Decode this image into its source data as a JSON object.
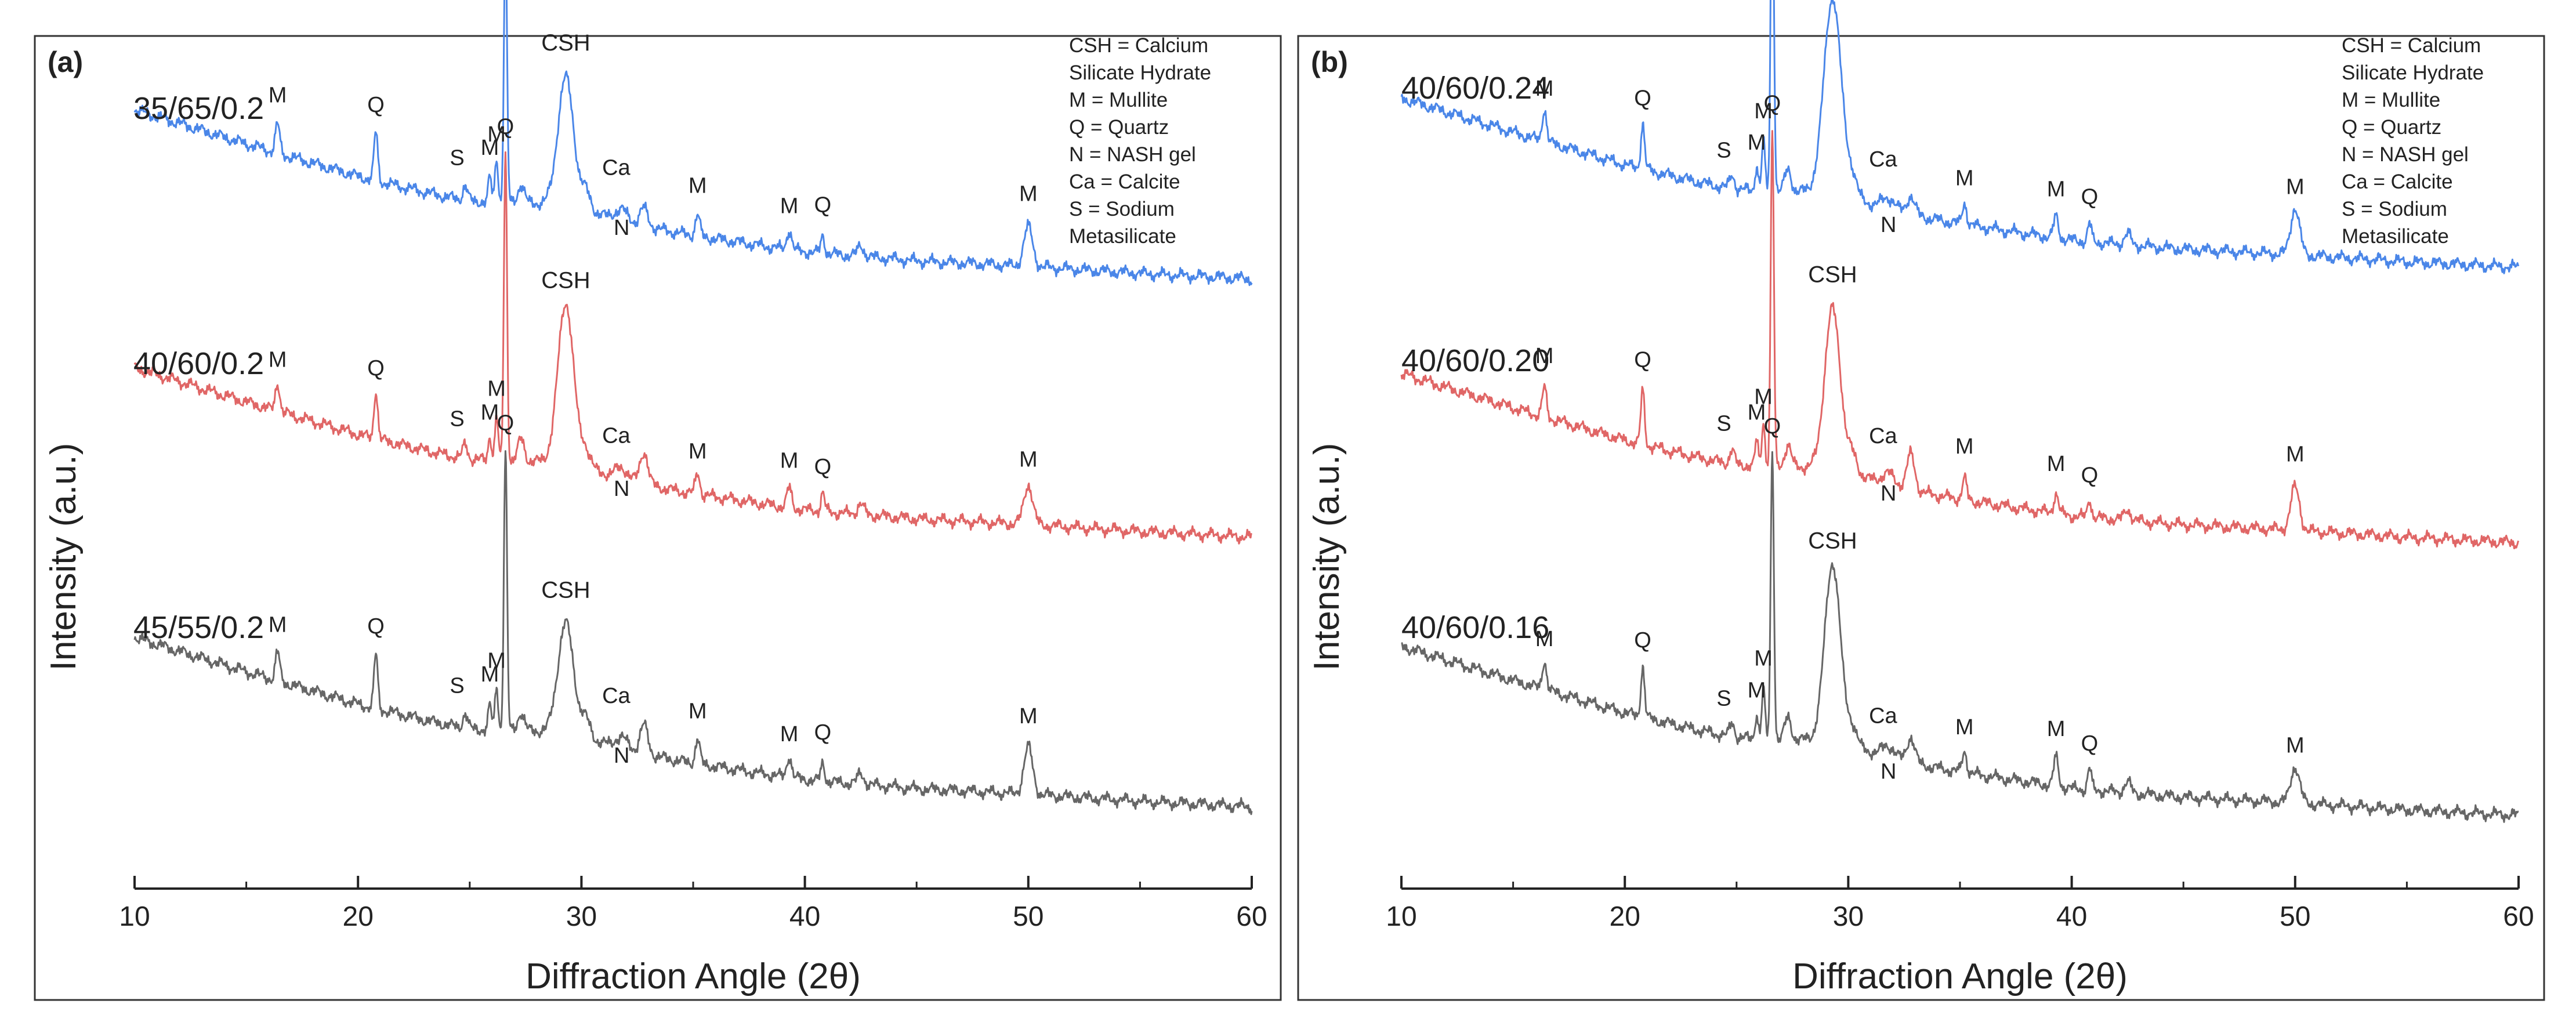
{
  "chart_data": [
    {
      "type": "line",
      "panel_label": "(a)",
      "xlabel": "Diffraction Angle (2θ)",
      "ylabel": "Intensity (a.u.)",
      "xlim": [
        10,
        60
      ],
      "x_ticks": [
        "10",
        "20",
        "30",
        "40",
        "50",
        "60"
      ],
      "grid": false,
      "legend_placement": "top-right",
      "legend": [
        "CSH = Calcium",
        "Silicate Hydrate",
        "M = Mullite",
        "Q = Quartz",
        "N = NASH gel",
        "Ca = Calcite",
        "S = Sodium",
        "Metasilicate"
      ],
      "series": [
        {
          "name": "35/65/0.2",
          "color": "#4a86e8",
          "baseline": [
            [
              10,
              0.97
            ],
            [
              15,
              0.78
            ],
            [
              20,
              0.6
            ],
            [
              25,
              0.45
            ],
            [
              30,
              0.36
            ],
            [
              35,
              0.27
            ],
            [
              40,
              0.18
            ],
            [
              45,
              0.13
            ],
            [
              50,
              0.1
            ],
            [
              55,
              0.06
            ],
            [
              60,
              0.03
            ]
          ],
          "peaks": [
            {
              "x": 16.4,
              "h": 0.16,
              "w": 0.14,
              "label": "M"
            },
            {
              "x": 20.8,
              "h": 0.27,
              "w": 0.12,
              "label": "Q"
            },
            {
              "x": 24.8,
              "h": 0.08,
              "w": 0.15,
              "label": "S"
            },
            {
              "x": 25.9,
              "h": 0.14,
              "w": 0.1,
              "label": "M"
            },
            {
              "x": 26.2,
              "h": 0.25,
              "w": 0.1,
              "label": "M"
            },
            {
              "x": 26.6,
              "h": 1.45,
              "w": 0.1,
              "label": "Q"
            },
            {
              "x": 27.3,
              "h": 0.1,
              "w": 0.2,
              "label": ""
            },
            {
              "x": 29.3,
              "h": 0.72,
              "w": 0.5,
              "label": "CSH"
            },
            {
              "x": 30.2,
              "h": 0.1,
              "w": 0.3,
              "label": "Ca"
            },
            {
              "x": 31.8,
              "h": 0.06,
              "w": 0.4,
              "label": "N"
            },
            {
              "x": 32.8,
              "h": 0.1,
              "w": 0.25,
              "label": ""
            },
            {
              "x": 35.2,
              "h": 0.12,
              "w": 0.14,
              "label": "M"
            },
            {
              "x": 39.3,
              "h": 0.11,
              "w": 0.15,
              "label": "M"
            },
            {
              "x": 40.8,
              "h": 0.1,
              "w": 0.12,
              "label": "Q"
            },
            {
              "x": 42.5,
              "h": 0.06,
              "w": 0.2,
              "label": ""
            },
            {
              "x": 50.0,
              "h": 0.22,
              "w": 0.28,
              "label": "M"
            }
          ]
        },
        {
          "name": "40/60/0.2",
          "color": "#e06666",
          "baseline": [
            [
              10,
              0.97
            ],
            [
              15,
              0.78
            ],
            [
              20,
              0.6
            ],
            [
              25,
              0.45
            ],
            [
              30,
              0.36
            ],
            [
              35,
              0.27
            ],
            [
              40,
              0.18
            ],
            [
              45,
              0.13
            ],
            [
              50,
              0.1
            ],
            [
              55,
              0.06
            ],
            [
              60,
              0.03
            ]
          ],
          "peaks": [
            {
              "x": 16.4,
              "h": 0.16,
              "w": 0.14,
              "label": "M"
            },
            {
              "x": 20.8,
              "h": 0.27,
              "w": 0.12,
              "label": "Q"
            },
            {
              "x": 24.8,
              "h": 0.08,
              "w": 0.15,
              "label": "S"
            },
            {
              "x": 25.9,
              "h": 0.14,
              "w": 0.1,
              "label": "M"
            },
            {
              "x": 26.2,
              "h": 0.25,
              "w": 0.1,
              "label": "M"
            },
            {
              "x": 26.6,
              "h": 1.7,
              "w": 0.1,
              "label": "Q"
            },
            {
              "x": 27.3,
              "h": 0.12,
              "w": 0.2,
              "label": ""
            },
            {
              "x": 29.3,
              "h": 0.9,
              "w": 0.5,
              "label": "CSH"
            },
            {
              "x": 30.2,
              "h": 0.1,
              "w": 0.3,
              "label": "Ca"
            },
            {
              "x": 31.8,
              "h": 0.06,
              "w": 0.4,
              "label": "N"
            },
            {
              "x": 32.8,
              "h": 0.18,
              "w": 0.25,
              "label": ""
            },
            {
              "x": 35.2,
              "h": 0.12,
              "w": 0.14,
              "label": "M"
            },
            {
              "x": 39.3,
              "h": 0.11,
              "w": 0.15,
              "label": "M"
            },
            {
              "x": 40.8,
              "h": 0.1,
              "w": 0.12,
              "label": "Q"
            },
            {
              "x": 42.5,
              "h": 0.06,
              "w": 0.2,
              "label": ""
            },
            {
              "x": 50.0,
              "h": 0.22,
              "w": 0.28,
              "label": "M"
            }
          ]
        },
        {
          "name": "45/55/0.2",
          "color": "#666666",
          "baseline": [
            [
              10,
              0.97
            ],
            [
              15,
              0.78
            ],
            [
              20,
              0.6
            ],
            [
              25,
              0.45
            ],
            [
              30,
              0.36
            ],
            [
              35,
              0.27
            ],
            [
              40,
              0.18
            ],
            [
              45,
              0.13
            ],
            [
              50,
              0.1
            ],
            [
              55,
              0.06
            ],
            [
              60,
              0.03
            ]
          ],
          "peaks": [
            {
              "x": 16.4,
              "h": 0.16,
              "w": 0.14,
              "label": "M"
            },
            {
              "x": 20.8,
              "h": 0.3,
              "w": 0.12,
              "label": "Q"
            },
            {
              "x": 24.8,
              "h": 0.08,
              "w": 0.15,
              "label": "S"
            },
            {
              "x": 25.9,
              "h": 0.14,
              "w": 0.1,
              "label": "M"
            },
            {
              "x": 26.2,
              "h": 0.25,
              "w": 0.1,
              "label": "M"
            },
            {
              "x": 26.6,
              "h": 1.55,
              "w": 0.1,
              "label": "Q"
            },
            {
              "x": 27.3,
              "h": 0.1,
              "w": 0.2,
              "label": ""
            },
            {
              "x": 29.3,
              "h": 0.62,
              "w": 0.5,
              "label": "CSH"
            },
            {
              "x": 30.2,
              "h": 0.1,
              "w": 0.3,
              "label": "Ca"
            },
            {
              "x": 31.8,
              "h": 0.06,
              "w": 0.4,
              "label": "N"
            },
            {
              "x": 32.8,
              "h": 0.16,
              "w": 0.25,
              "label": ""
            },
            {
              "x": 35.2,
              "h": 0.14,
              "w": 0.14,
              "label": "M"
            },
            {
              "x": 39.3,
              "h": 0.12,
              "w": 0.15,
              "label": "M"
            },
            {
              "x": 40.8,
              "h": 0.1,
              "w": 0.12,
              "label": "Q"
            },
            {
              "x": 42.5,
              "h": 0.06,
              "w": 0.2,
              "label": ""
            },
            {
              "x": 50.0,
              "h": 0.26,
              "w": 0.28,
              "label": "M"
            }
          ]
        }
      ]
    },
    {
      "type": "line",
      "panel_label": "(b)",
      "xlabel": "Diffraction Angle (2θ)",
      "ylabel": "Intensity (a.u.)",
      "xlim": [
        10,
        60
      ],
      "x_ticks": [
        "10",
        "20",
        "30",
        "40",
        "50",
        "60"
      ],
      "grid": false,
      "legend_placement": "top-right",
      "legend": [
        "CSH = Calcium",
        "Silicate Hydrate",
        "M = Mullite",
        "Q = Quartz",
        "N = NASH gel",
        "Ca = Calcite",
        "S = Sodium",
        "Metasilicate"
      ],
      "series": [
        {
          "name": "40/60/0.24",
          "color": "#4a86e8",
          "baseline": [
            [
              10,
              0.97
            ],
            [
              15,
              0.78
            ],
            [
              20,
              0.6
            ],
            [
              25,
              0.45
            ],
            [
              30,
              0.36
            ],
            [
              35,
              0.27
            ],
            [
              40,
              0.18
            ],
            [
              45,
              0.13
            ],
            [
              50,
              0.1
            ],
            [
              55,
              0.06
            ],
            [
              60,
              0.03
            ]
          ],
          "peaks": [
            {
              "x": 16.4,
              "h": 0.18,
              "w": 0.14,
              "label": "M"
            },
            {
              "x": 20.8,
              "h": 0.25,
              "w": 0.12,
              "label": "Q"
            },
            {
              "x": 24.8,
              "h": 0.08,
              "w": 0.15,
              "label": "S"
            },
            {
              "x": 25.9,
              "h": 0.14,
              "w": 0.1,
              "label": "M"
            },
            {
              "x": 26.2,
              "h": 0.28,
              "w": 0.1,
              "label": "M"
            },
            {
              "x": 26.6,
              "h": 1.95,
              "w": 0.1,
              "label": "Q"
            },
            {
              "x": 27.3,
              "h": 0.12,
              "w": 0.2,
              "label": ""
            },
            {
              "x": 29.3,
              "h": 1.1,
              "w": 0.55,
              "label": "CSH"
            },
            {
              "x": 30.2,
              "h": 0.1,
              "w": 0.3,
              "label": "Ca"
            },
            {
              "x": 31.8,
              "h": 0.06,
              "w": 0.4,
              "label": "N"
            },
            {
              "x": 32.8,
              "h": 0.1,
              "w": 0.25,
              "label": ""
            },
            {
              "x": 35.2,
              "h": 0.12,
              "w": 0.14,
              "label": "M"
            },
            {
              "x": 39.3,
              "h": 0.12,
              "w": 0.15,
              "label": "M"
            },
            {
              "x": 40.8,
              "h": 0.1,
              "w": 0.12,
              "label": "Q"
            },
            {
              "x": 42.5,
              "h": 0.06,
              "w": 0.2,
              "label": ""
            },
            {
              "x": 50.0,
              "h": 0.26,
              "w": 0.28,
              "label": "M"
            }
          ]
        },
        {
          "name": "40/60/0.20",
          "color": "#e06666",
          "baseline": [
            [
              10,
              0.97
            ],
            [
              15,
              0.78
            ],
            [
              20,
              0.6
            ],
            [
              25,
              0.45
            ],
            [
              30,
              0.36
            ],
            [
              35,
              0.27
            ],
            [
              40,
              0.18
            ],
            [
              45,
              0.13
            ],
            [
              50,
              0.1
            ],
            [
              55,
              0.06
            ],
            [
              60,
              0.03
            ]
          ],
          "peaks": [
            {
              "x": 16.4,
              "h": 0.16,
              "w": 0.14,
              "label": "M"
            },
            {
              "x": 20.8,
              "h": 0.3,
              "w": 0.12,
              "label": "Q"
            },
            {
              "x": 24.8,
              "h": 0.08,
              "w": 0.15,
              "label": "S"
            },
            {
              "x": 25.9,
              "h": 0.14,
              "w": 0.1,
              "label": "M"
            },
            {
              "x": 26.2,
              "h": 0.25,
              "w": 0.1,
              "label": "M"
            },
            {
              "x": 26.6,
              "h": 1.85,
              "w": 0.1,
              "label": "Q"
            },
            {
              "x": 27.3,
              "h": 0.12,
              "w": 0.2,
              "label": ""
            },
            {
              "x": 29.3,
              "h": 0.9,
              "w": 0.5,
              "label": "CSH"
            },
            {
              "x": 30.2,
              "h": 0.1,
              "w": 0.3,
              "label": "Ca"
            },
            {
              "x": 31.8,
              "h": 0.06,
              "w": 0.4,
              "label": "N"
            },
            {
              "x": 32.8,
              "h": 0.2,
              "w": 0.25,
              "label": ""
            },
            {
              "x": 35.2,
              "h": 0.12,
              "w": 0.14,
              "label": "M"
            },
            {
              "x": 39.3,
              "h": 0.11,
              "w": 0.15,
              "label": "M"
            },
            {
              "x": 40.8,
              "h": 0.1,
              "w": 0.12,
              "label": "Q"
            },
            {
              "x": 42.5,
              "h": 0.06,
              "w": 0.2,
              "label": ""
            },
            {
              "x": 50.0,
              "h": 0.24,
              "w": 0.28,
              "label": "M"
            }
          ]
        },
        {
          "name": "40/60/0.16",
          "color": "#666666",
          "baseline": [
            [
              10,
              0.97
            ],
            [
              15,
              0.78
            ],
            [
              20,
              0.6
            ],
            [
              25,
              0.45
            ],
            [
              30,
              0.36
            ],
            [
              35,
              0.27
            ],
            [
              40,
              0.18
            ],
            [
              45,
              0.13
            ],
            [
              50,
              0.1
            ],
            [
              55,
              0.06
            ],
            [
              60,
              0.03
            ]
          ],
          "peaks": [
            {
              "x": 16.4,
              "h": 0.16,
              "w": 0.14,
              "label": "M"
            },
            {
              "x": 20.8,
              "h": 0.28,
              "w": 0.12,
              "label": "Q"
            },
            {
              "x": 24.8,
              "h": 0.08,
              "w": 0.15,
              "label": "S"
            },
            {
              "x": 25.9,
              "h": 0.14,
              "w": 0.1,
              "label": "M"
            },
            {
              "x": 26.2,
              "h": 0.28,
              "w": 0.1,
              "label": "M"
            },
            {
              "x": 26.6,
              "h": 1.6,
              "w": 0.1,
              "label": "Q"
            },
            {
              "x": 27.3,
              "h": 0.12,
              "w": 0.2,
              "label": ""
            },
            {
              "x": 29.3,
              "h": 1.0,
              "w": 0.5,
              "label": "CSH"
            },
            {
              "x": 30.2,
              "h": 0.1,
              "w": 0.3,
              "label": "Ca"
            },
            {
              "x": 31.8,
              "h": 0.06,
              "w": 0.4,
              "label": "N"
            },
            {
              "x": 32.8,
              "h": 0.14,
              "w": 0.25,
              "label": ""
            },
            {
              "x": 35.2,
              "h": 0.12,
              "w": 0.14,
              "label": "M"
            },
            {
              "x": 39.3,
              "h": 0.16,
              "w": 0.15,
              "label": "M"
            },
            {
              "x": 40.8,
              "h": 0.12,
              "w": 0.12,
              "label": "Q"
            },
            {
              "x": 42.5,
              "h": 0.06,
              "w": 0.2,
              "label": ""
            },
            {
              "x": 50.0,
              "h": 0.2,
              "w": 0.28,
              "label": "M"
            }
          ]
        }
      ]
    }
  ]
}
